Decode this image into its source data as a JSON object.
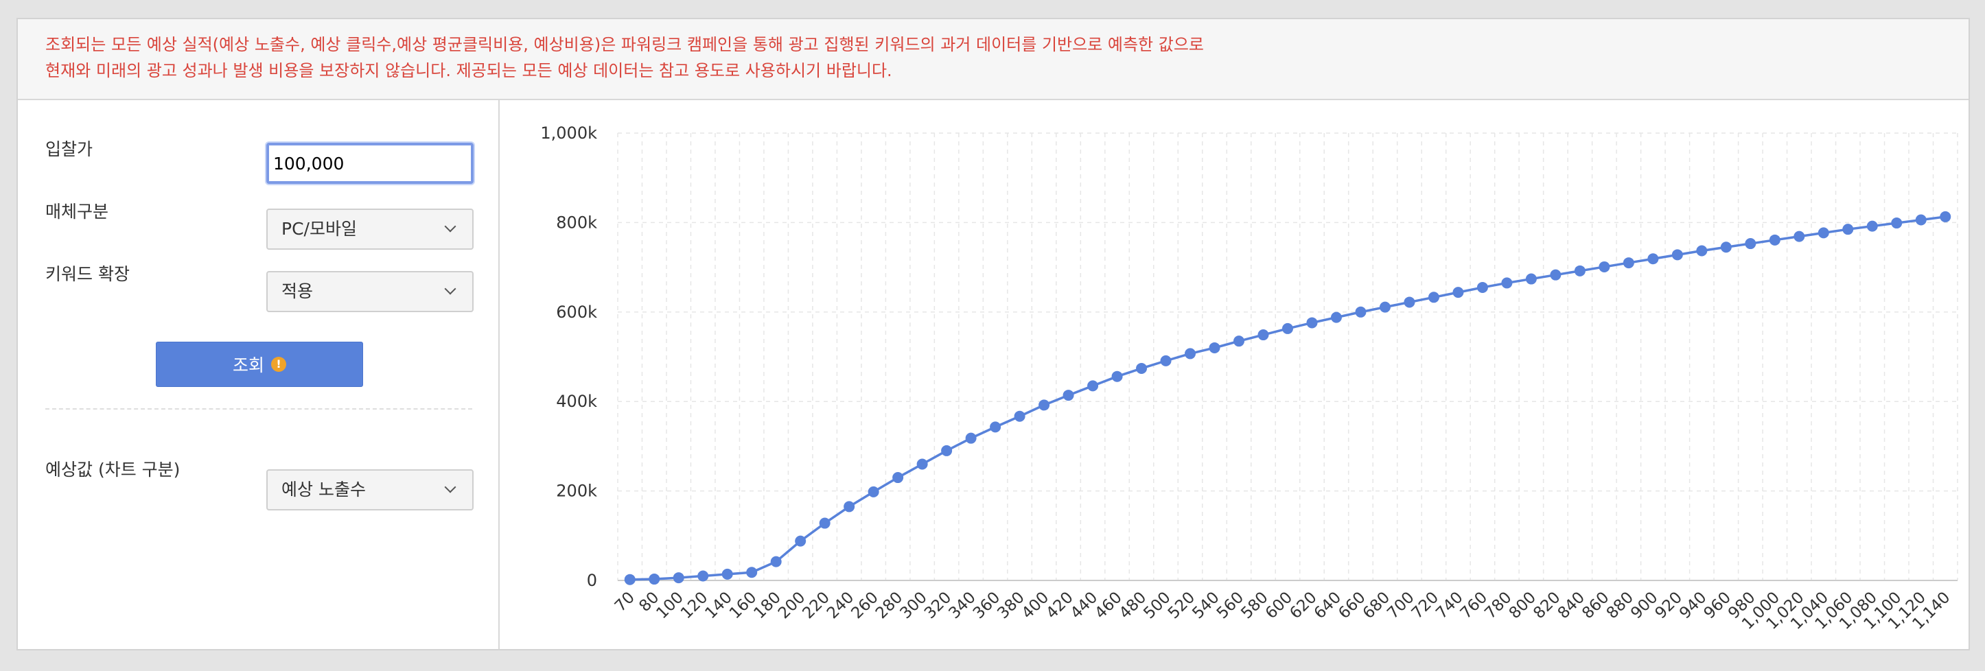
{
  "notice": {
    "line1": "조회되는 모든 예상 실적(예상 노출수, 예상 클릭수,예상 평균클릭비용, 예상비용)은 파워링크 캠페인을 통해 광고 집행된 키워드의 과거 데이터를 기반으로 예측한 값으로",
    "line2": "현재와 미래의 광고 성과나 발생 비용을 보장하지 않습니다. 제공되는 모든 예상 데이터는 참고 용도로 사용하시기 바랍니다."
  },
  "form": {
    "bid_label": "입찰가",
    "bid_value": "100,000",
    "media_label": "매체구분",
    "media_value": "PC/모바일",
    "keyword_label": "키워드 확장",
    "keyword_value": "적용",
    "query_label": "조회",
    "query_icon": "!",
    "estimate_label": "예상값 (차트 구분)",
    "estimate_value": "예상 노출수"
  },
  "colors": {
    "notice_text": "#d9453c",
    "button": "#5882da",
    "series": "#5882da",
    "warn": "#f0a32a"
  },
  "chart_data": {
    "type": "line",
    "title": "",
    "xlabel": "",
    "ylabel": "",
    "ylim": [
      0,
      1000000
    ],
    "yticks": [
      0,
      200000,
      400000,
      600000,
      800000,
      1000000
    ],
    "ytick_labels": [
      "0",
      "200k",
      "400k",
      "600k",
      "800k",
      "1,000k"
    ],
    "grid": true,
    "x": [
      70,
      80,
      100,
      120,
      140,
      160,
      180,
      200,
      220,
      240,
      260,
      280,
      300,
      320,
      340,
      360,
      380,
      400,
      420,
      440,
      460,
      480,
      500,
      520,
      540,
      560,
      580,
      600,
      620,
      640,
      660,
      680,
      700,
      720,
      740,
      760,
      780,
      800,
      820,
      840,
      860,
      880,
      900,
      920,
      940,
      960,
      980,
      1000,
      1020,
      1040,
      1060,
      1080,
      1100,
      1120,
      1140
    ],
    "x_labels": [
      "70",
      "80",
      "100",
      "120",
      "140",
      "160",
      "180",
      "200",
      "220",
      "240",
      "260",
      "280",
      "300",
      "320",
      "340",
      "360",
      "380",
      "400",
      "420",
      "440",
      "460",
      "480",
      "500",
      "520",
      "540",
      "560",
      "580",
      "600",
      "620",
      "640",
      "660",
      "680",
      "700",
      "720",
      "740",
      "760",
      "780",
      "800",
      "820",
      "840",
      "860",
      "880",
      "900",
      "920",
      "940",
      "960",
      "980",
      "1,000",
      "1,020",
      "1,040",
      "1,060",
      "1,080",
      "1,100",
      "1,120",
      "1,140"
    ],
    "series": [
      {
        "values": [
          2000,
          3000,
          6000,
          10000,
          14000,
          18000,
          42000,
          88000,
          128000,
          165000,
          198000,
          230000,
          260000,
          290000,
          318000,
          343000,
          367000,
          392000,
          414000,
          435000,
          456000,
          474000,
          491000,
          507000,
          520000,
          535000,
          549000,
          563000,
          576000,
          588000,
          600000,
          611000,
          622000,
          633000,
          644000,
          655000,
          665000,
          674000,
          683000,
          692000,
          701000,
          710000,
          719000,
          728000,
          737000,
          745000,
          753000,
          761000,
          769000,
          777000,
          785000,
          792000,
          799000,
          806000,
          813000
        ]
      }
    ]
  }
}
